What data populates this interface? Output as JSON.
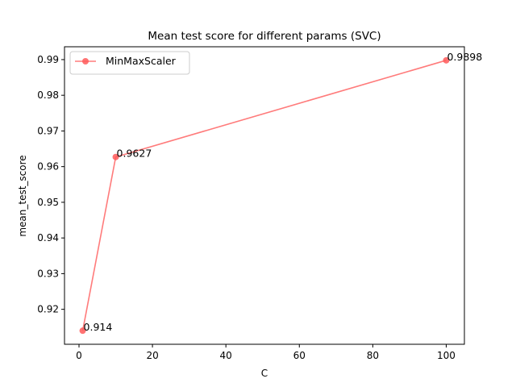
{
  "chart_data": {
    "type": "line",
    "title": "Mean test score for different params (SVC)",
    "xlabel": "C",
    "ylabel": "mean_test_score",
    "xlim": [
      -3.95,
      104.95
    ],
    "ylim": [
      0.9102,
      0.9936
    ],
    "x_ticks": [
      0,
      20,
      40,
      60,
      80,
      100
    ],
    "y_ticks": [
      0.92,
      0.93,
      0.94,
      0.95,
      0.96,
      0.97,
      0.98,
      0.99
    ],
    "grid": false,
    "legend_position": "top-left",
    "series": [
      {
        "name": "MinMaxScaler",
        "color": "#ff5a5a",
        "marker": "circle",
        "x": [
          1,
          10,
          100
        ],
        "y": [
          0.914,
          0.9627,
          0.9898
        ],
        "labels": [
          "0.914",
          "0.9627",
          "0.9898"
        ]
      }
    ]
  }
}
